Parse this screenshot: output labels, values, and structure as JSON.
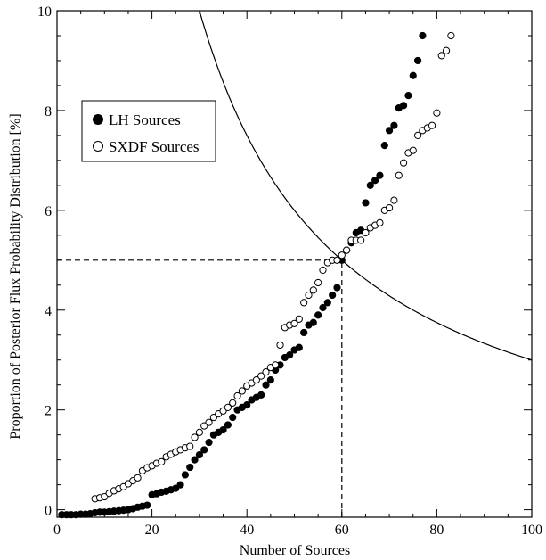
{
  "chart_data": {
    "type": "scatter",
    "xlabel": "Number of Sources",
    "ylabel": "Proportion of Posterior Flux Probability Distribution [%]",
    "xlim": [
      0,
      100
    ],
    "ylim": [
      -0.15,
      10
    ],
    "xticks": [
      0,
      20,
      40,
      60,
      80,
      100
    ],
    "yticks": [
      0,
      2,
      4,
      6,
      8,
      10
    ],
    "grid": false,
    "legend": {
      "placement": "upper-left"
    },
    "series": [
      {
        "name": "LH Sources",
        "marker": "filled-circle",
        "color": "#000000",
        "x": [
          1,
          2,
          3,
          4,
          5,
          6,
          7,
          8,
          9,
          10,
          11,
          12,
          13,
          14,
          15,
          16,
          17,
          18,
          19,
          20,
          21,
          22,
          23,
          24,
          25,
          26,
          27,
          28,
          29,
          30,
          31,
          32,
          33,
          34,
          35,
          36,
          37,
          38,
          39,
          40,
          41,
          42,
          43,
          44,
          45,
          46,
          47,
          48,
          49,
          50,
          51,
          52,
          53,
          54,
          55,
          56,
          57,
          58,
          59,
          60,
          61,
          62,
          63,
          64,
          65,
          66,
          67,
          68,
          69,
          70,
          71,
          72,
          73,
          74,
          75,
          76,
          77
        ],
        "y": [
          -0.1,
          -0.1,
          -0.1,
          -0.1,
          -0.09,
          -0.09,
          -0.08,
          -0.06,
          -0.05,
          -0.05,
          -0.04,
          -0.03,
          -0.02,
          -0.01,
          0.0,
          0.02,
          0.05,
          0.07,
          0.09,
          0.3,
          0.32,
          0.35,
          0.37,
          0.4,
          0.43,
          0.5,
          0.7,
          0.85,
          1.0,
          1.1,
          1.2,
          1.35,
          1.5,
          1.55,
          1.6,
          1.7,
          1.85,
          2.0,
          2.05,
          2.1,
          2.2,
          2.25,
          2.3,
          2.5,
          2.6,
          2.8,
          2.9,
          3.05,
          3.1,
          3.2,
          3.25,
          3.55,
          3.7,
          3.75,
          3.9,
          4.05,
          4.15,
          4.3,
          4.45,
          5.0,
          5.2,
          5.35,
          5.55,
          5.6,
          6.15,
          6.5,
          6.6,
          6.7,
          7.3,
          7.6,
          7.7,
          8.05,
          8.1,
          8.3,
          8.7,
          9.0,
          9.5
        ]
      },
      {
        "name": "SXDF Sources",
        "marker": "open-circle",
        "color": "#000000",
        "x": [
          8,
          9,
          10,
          11,
          12,
          13,
          14,
          15,
          16,
          17,
          18,
          19,
          20,
          21,
          22,
          23,
          24,
          25,
          26,
          27,
          28,
          29,
          30,
          31,
          32,
          33,
          34,
          35,
          36,
          37,
          38,
          39,
          40,
          41,
          42,
          43,
          44,
          45,
          46,
          47,
          48,
          49,
          50,
          51,
          52,
          53,
          54,
          55,
          56,
          57,
          58,
          59,
          60,
          61,
          62,
          63,
          64,
          65,
          66,
          67,
          68,
          69,
          70,
          71,
          72,
          73,
          74,
          75,
          76,
          77,
          78,
          79,
          80,
          81,
          82,
          83
        ],
        "y": [
          0.22,
          0.24,
          0.26,
          0.33,
          0.38,
          0.42,
          0.46,
          0.52,
          0.58,
          0.64,
          0.78,
          0.84,
          0.88,
          0.93,
          0.96,
          1.06,
          1.11,
          1.16,
          1.2,
          1.24,
          1.27,
          1.45,
          1.55,
          1.68,
          1.75,
          1.85,
          1.92,
          1.98,
          2.05,
          2.14,
          2.28,
          2.38,
          2.48,
          2.54,
          2.6,
          2.68,
          2.76,
          2.85,
          2.9,
          3.3,
          3.65,
          3.7,
          3.73,
          3.82,
          4.15,
          4.3,
          4.4,
          4.55,
          4.8,
          4.95,
          5.0,
          5.0,
          5.1,
          5.2,
          5.4,
          5.4,
          5.4,
          5.55,
          5.65,
          5.7,
          5.75,
          6.0,
          6.05,
          6.2,
          6.7,
          6.95,
          7.15,
          7.2,
          7.5,
          7.6,
          7.65,
          7.7,
          7.95,
          9.1,
          9.2,
          9.5
        ]
      }
    ],
    "reference_curve": {
      "style": "solid",
      "relation": "y = 300 / x",
      "x_range": [
        30,
        100
      ]
    },
    "reference_lines": [
      {
        "orientation": "horizontal",
        "value": 5,
        "style": "dashed",
        "x_range": [
          0,
          60
        ]
      },
      {
        "orientation": "vertical",
        "value": 60,
        "style": "dashed",
        "y_range": [
          -0.15,
          5
        ]
      }
    ]
  }
}
